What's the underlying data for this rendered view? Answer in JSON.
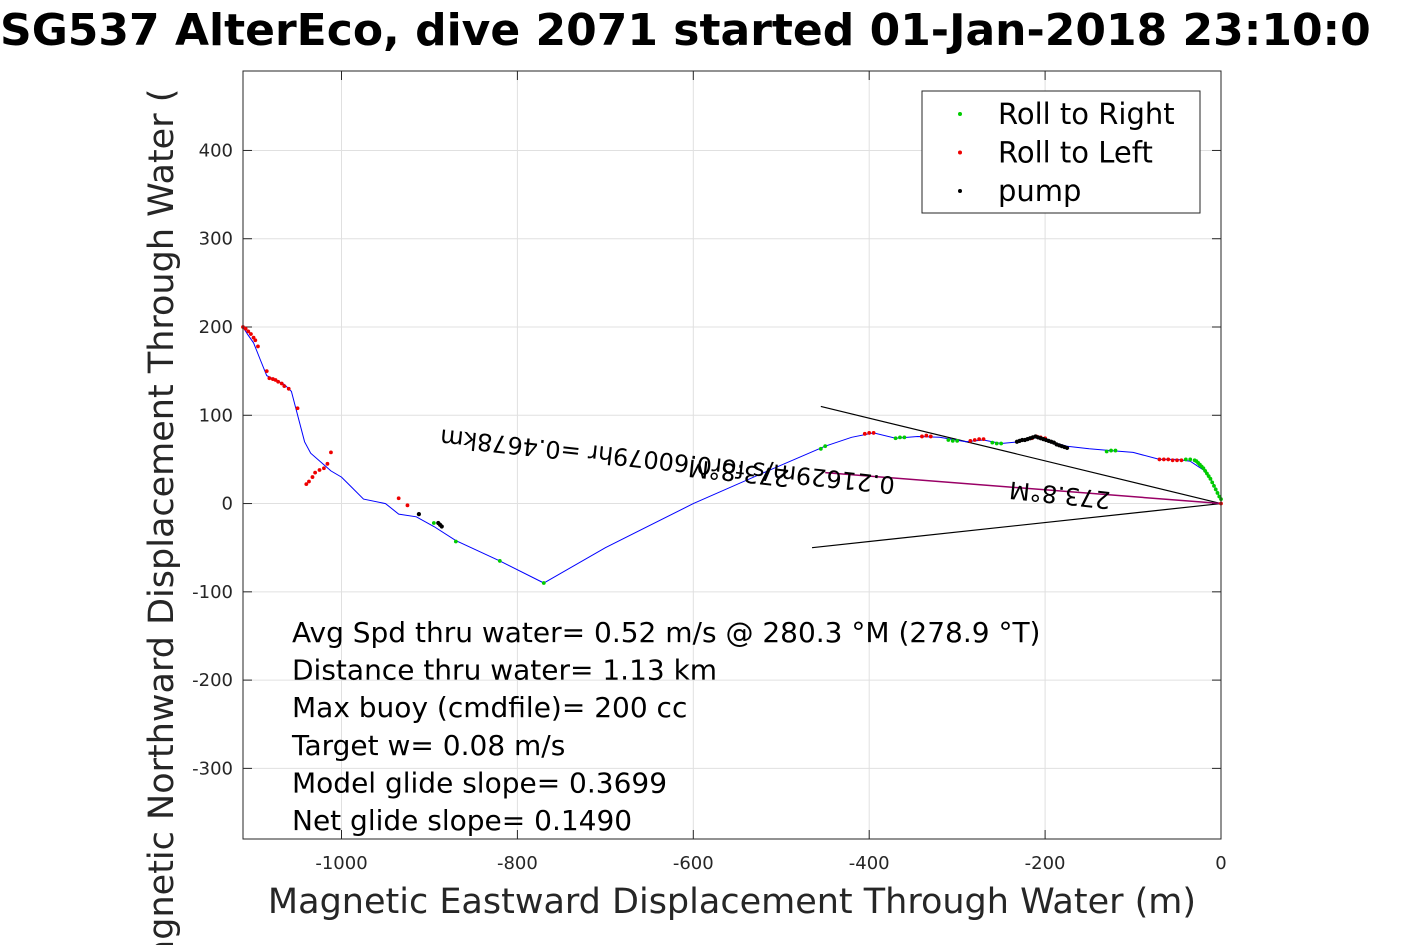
{
  "title": "SG537 AlterEco, dive 2071 started 01-Jan-2018 23:10:0",
  "chart_data": {
    "type": "scatter",
    "xlabel": "Magnetic Eastward Displacement Through Water (m)",
    "ylabel": "Magnetic Northward Displacement Through Water (",
    "xlim": [
      -1112,
      0
    ],
    "ylim": [
      -380,
      490
    ],
    "xticks": [
      -1000,
      -800,
      -600,
      -400,
      -200,
      0
    ],
    "yticks": [
      -300,
      -200,
      -100,
      0,
      100,
      200,
      300,
      400
    ],
    "grid": true,
    "legend_position": "top-right",
    "legend": [
      {
        "label": "Roll to Right",
        "color": "#00cc00"
      },
      {
        "label": "Roll to Left",
        "color": "#ee0000"
      },
      {
        "label": "pump",
        "color": "#000000"
      }
    ],
    "track": {
      "name": "track",
      "color": "#0000ff",
      "x": [
        0,
        -5,
        -10,
        -20,
        -35,
        -50,
        -70,
        -100,
        -125,
        -150,
        -175,
        -200,
        -215,
        -230,
        -250,
        -270,
        -290,
        -320,
        -345,
        -370,
        -395,
        -420,
        -450,
        -520,
        -600,
        -700,
        -770,
        -820,
        -870,
        -895,
        -915,
        -935,
        -950,
        -975,
        -990,
        -1000,
        -1012,
        -1020,
        -1035,
        -1042,
        -1052,
        -1057,
        -1065,
        -1075,
        -1085,
        -1092,
        -1100,
        -1107,
        -1112
      ],
      "y": [
        4,
        15,
        25,
        38,
        48,
        50,
        50,
        58,
        60,
        62,
        65,
        72,
        75,
        70,
        68,
        72,
        70,
        75,
        76,
        74,
        80,
        75,
        65,
        35,
        0,
        -50,
        -90,
        -65,
        -42,
        -26,
        -15,
        -12,
        0,
        5,
        20,
        30,
        37,
        44,
        57,
        70,
        108,
        127,
        135,
        140,
        145,
        162,
        182,
        192,
        200
      ]
    },
    "roll_right": {
      "x": [
        0,
        -2,
        -4,
        -6,
        -8,
        -10,
        -12,
        -14,
        -16,
        -18,
        -20,
        -22,
        -24,
        -26,
        -28,
        -30,
        -35,
        -40,
        -120,
        -125,
        -130,
        -250,
        -255,
        -260,
        -300,
        -305,
        -310,
        -360,
        -365,
        -370,
        -450,
        -455,
        -820,
        -870,
        -770,
        -895
      ],
      "y": [
        5,
        8,
        12,
        16,
        20,
        24,
        28,
        31,
        34,
        37,
        40,
        42,
        44,
        46,
        48,
        49,
        50,
        50,
        60,
        60,
        59,
        68,
        68,
        69,
        71,
        71,
        72,
        75,
        75,
        74,
        65,
        62,
        -65,
        -43,
        -90,
        -22
      ]
    },
    "roll_left": {
      "x": [
        0,
        -45,
        -50,
        -55,
        -60,
        -65,
        -70,
        -270,
        -275,
        -280,
        -285,
        -330,
        -335,
        -340,
        -395,
        -400,
        -405,
        -200,
        -205,
        -210,
        -215,
        -1012,
        -1016,
        -1020,
        -1025,
        -1030,
        -1033,
        -1037,
        -1040,
        -1060,
        -1065,
        -1068,
        -1072,
        -1075,
        -1078,
        -1082,
        -1095,
        -1098,
        -1100,
        -1103,
        -1106,
        -1109,
        -1112,
        -935,
        -925,
        -1050,
        -1085
      ],
      "y": [
        0,
        49,
        49,
        49,
        50,
        50,
        50,
        73,
        73,
        72,
        71,
        76,
        77,
        76,
        80,
        80,
        79,
        74,
        75,
        76,
        74,
        58,
        45,
        40,
        38,
        35,
        30,
        25,
        22,
        130,
        133,
        136,
        138,
        140,
        141,
        142,
        178,
        185,
        188,
        192,
        195,
        198,
        200,
        6,
        -2,
        108,
        150
      ]
    },
    "pump": {
      "x": [
        -175,
        -178,
        -181,
        -184,
        -187,
        -190,
        -193,
        -196,
        -199,
        -202,
        -205,
        -208,
        -211,
        -214,
        -217,
        -220,
        -223,
        -226,
        -229,
        -232,
        -912,
        -890,
        -888,
        -886
      ],
      "y": [
        63,
        64,
        65,
        66,
        67,
        69,
        70,
        71,
        72,
        73,
        74,
        75,
        76,
        75,
        74,
        73,
        72,
        72,
        71,
        70,
        -12,
        -22,
        -24,
        -26
      ]
    },
    "current_wedge": {
      "color": "#000000",
      "upper": {
        "x": [
          0,
          -455
        ],
        "y": [
          0,
          110
        ]
      },
      "lower": {
        "x": [
          0,
          -465
        ],
        "y": [
          0,
          -50
        ]
      }
    },
    "depth_avg_current": {
      "color": "#990066",
      "x": [
        0,
        -450
      ],
      "y": [
        0,
        35
      ]
    },
    "annotations": [
      {
        "text": "0.21629m/s for0.60079hr =0.4678km",
        "x": -370,
        "y": 30,
        "rotate_deg": 186
      },
      {
        "text": "273.8°M",
        "x": -490,
        "y": 38,
        "rotate_deg": 186
      },
      {
        "text": "273.8°M",
        "x": -125,
        "y": 13,
        "rotate_deg": 186
      }
    ],
    "stats_text": [
      "Avg Spd thru water=  0.52 m/s @ 280.3 °M (278.9 °T)",
      "Distance thru water=  1.13 km",
      "Max buoy (cmdfile)= 200 cc",
      "Target w= 0.08 m/s",
      "Model glide slope= 0.3699",
      "Net glide slope= 0.1490"
    ]
  }
}
